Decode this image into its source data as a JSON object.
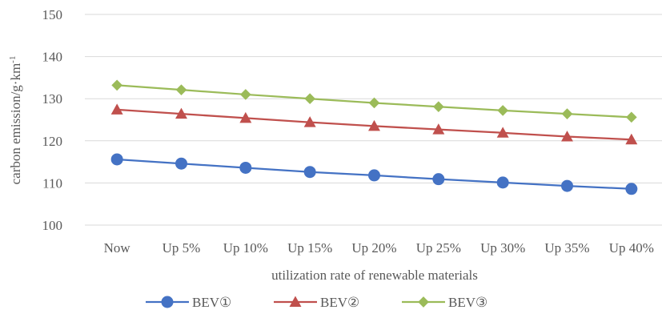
{
  "chart_data": {
    "type": "line",
    "title": "",
    "xlabel": "utilization rate of renewable materials",
    "ylabel": "carbon emission/g·km",
    "ylabel_sup": "-1",
    "categories": [
      "Now",
      "Up 5%",
      "Up 10%",
      "Up 15%",
      "Up 20%",
      "Up 25%",
      "Up 30%",
      "Up 35%",
      "Up 40%"
    ],
    "ylim": [
      100,
      150
    ],
    "yticks": [
      100,
      110,
      120,
      130,
      140,
      150
    ],
    "grid": true,
    "legend_position": "bottom",
    "series": [
      {
        "name": "BEV①",
        "marker": "circle",
        "color": "#4472c4",
        "values": [
          115.6,
          114.6,
          113.6,
          112.6,
          111.8,
          110.9,
          110.1,
          109.3,
          108.6
        ]
      },
      {
        "name": "BEV②",
        "marker": "triangle",
        "color": "#c0504d",
        "values": [
          127.4,
          126.4,
          125.4,
          124.4,
          123.5,
          122.7,
          121.9,
          121.0,
          120.3
        ]
      },
      {
        "name": "BEV③",
        "marker": "diamond",
        "color": "#9bbb59",
        "values": [
          133.2,
          132.1,
          131.0,
          130.0,
          129.0,
          128.1,
          127.2,
          126.4,
          125.6
        ]
      }
    ]
  }
}
